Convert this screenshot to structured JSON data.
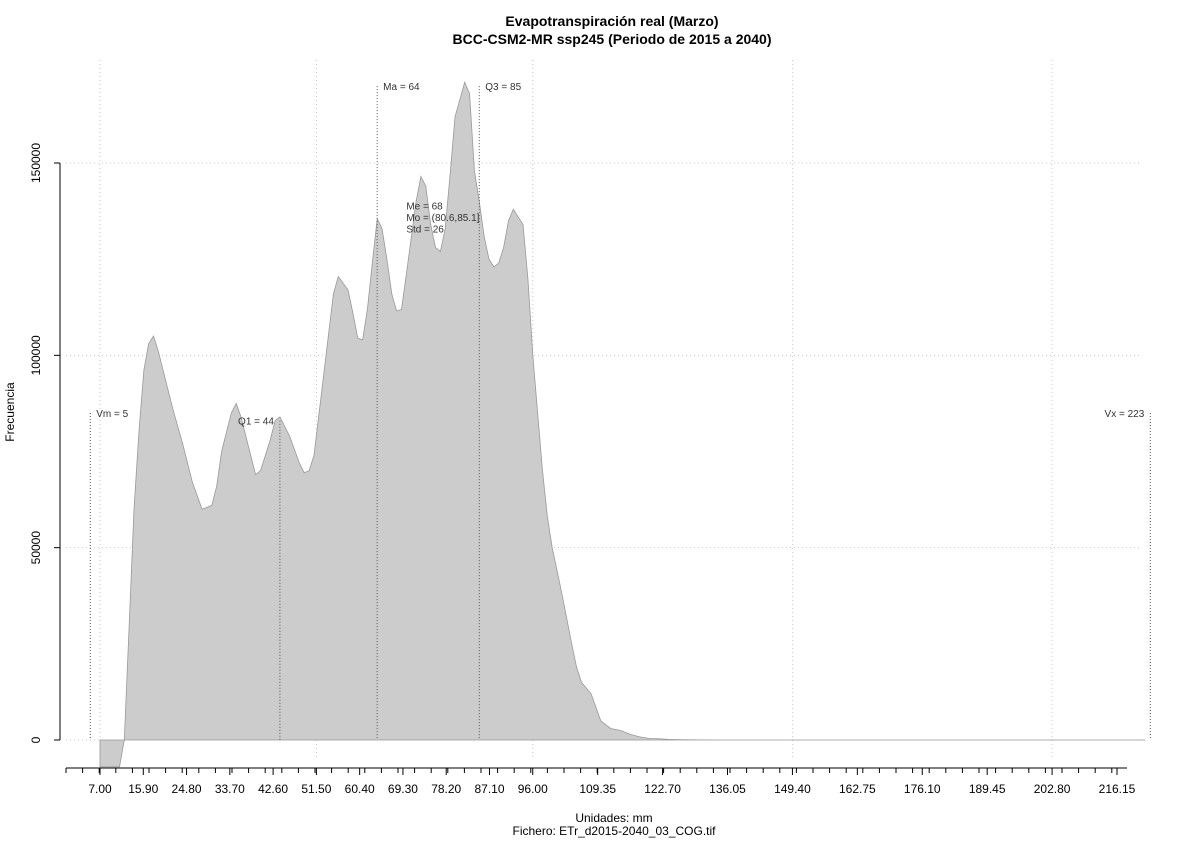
{
  "chart_data": {
    "type": "area",
    "title": "Evapotranspiración real (Marzo)",
    "subtitle": "BCC-CSM2-MR ssp245 (Periodo de 2015 a 2040)",
    "xlabel": "Unidades: mm",
    "ylabel": "Frecuencia",
    "footer": "Fichero: ETr_d2015-2040_03_COG.tif",
    "xlim": [
      2,
      225
    ],
    "ylim": [
      -7000,
      175000
    ],
    "x_ticks": [
      7.0,
      15.9,
      24.8,
      33.7,
      42.6,
      51.5,
      60.4,
      69.3,
      78.2,
      87.1,
      96.0,
      109.35,
      122.7,
      136.05,
      149.4,
      162.75,
      176.1,
      189.45,
      202.8,
      216.15
    ],
    "x_tick_labels": [
      "7.00",
      "15.90",
      "24.80",
      "33.70",
      "42.60",
      "51.50",
      "60.40",
      "69.30",
      "78.20",
      "87.10",
      "96.00",
      "109.35",
      "122.70",
      "136.05",
      "149.40",
      "162.75",
      "176.10",
      "189.45",
      "202.80",
      "216.15"
    ],
    "y_ticks": [
      0,
      50000,
      100000,
      150000
    ],
    "y_tick_labels": [
      "0",
      "50000",
      "100000",
      "150000"
    ],
    "grid": true,
    "fill_color": "#cccccc",
    "line_color": "#999999",
    "density": {
      "x": [
        7,
        9,
        11,
        12,
        13,
        14,
        15,
        16,
        17,
        18,
        19,
        20,
        22,
        24,
        26,
        28,
        30,
        31,
        32,
        34,
        35,
        36,
        38,
        39,
        40,
        42,
        43,
        44,
        46,
        48,
        49,
        50,
        51,
        53,
        55,
        56,
        58,
        59,
        60,
        61,
        62,
        63,
        64,
        65,
        66,
        67,
        68,
        69,
        70,
        72,
        73,
        74,
        75,
        76,
        77,
        78,
        79,
        80,
        82,
        83,
        84,
        85,
        86,
        87,
        88,
        89,
        90,
        91,
        92,
        94,
        95,
        96,
        98,
        99,
        100,
        101,
        102,
        104,
        105,
        106,
        108,
        110,
        112,
        114,
        116,
        118,
        120,
        122,
        124,
        126,
        128,
        130,
        135,
        140,
        150,
        160,
        180,
        200,
        222
      ],
      "y": [
        -7000,
        -7000,
        -7000,
        0,
        30000,
        60000,
        80000,
        96000,
        103000,
        105000,
        101000,
        96000,
        86000,
        77000,
        67000,
        60000,
        61000,
        66000,
        75000,
        85000,
        87500,
        84000,
        74000,
        69000,
        70000,
        78000,
        83000,
        84000,
        79000,
        72000,
        69500,
        70000,
        74000,
        95000,
        116000,
        120500,
        117000,
        111000,
        104500,
        104000,
        112000,
        124000,
        135500,
        133000,
        125000,
        116000,
        111500,
        112000,
        121000,
        140000,
        146500,
        144000,
        134000,
        128000,
        127000,
        133000,
        147000,
        162000,
        171000,
        168000,
        148000,
        140000,
        131000,
        125000,
        123000,
        124000,
        128000,
        135000,
        138000,
        134000,
        120000,
        100000,
        70000,
        58000,
        50000,
        44000,
        38000,
        25000,
        19000,
        15000,
        12000,
        5000,
        3000,
        2500,
        1500,
        800,
        400,
        300,
        150,
        100,
        50,
        30,
        10,
        0,
        0,
        0,
        0,
        0,
        0
      ]
    },
    "annotations": [
      {
        "x": 5,
        "label": "Vm = 5",
        "line_top": 85000,
        "label_y": 85000,
        "side": "right"
      },
      {
        "x": 44,
        "label": "Q1 = 44",
        "line_top": 83000,
        "label_y": 83000,
        "side": "left"
      },
      {
        "x": 64,
        "label": "Ma = 64",
        "line_top": 170000,
        "label_y": 170000,
        "side": "right"
      },
      {
        "x": 85,
        "label": "Q3 = 85",
        "line_top": 170000,
        "label_y": 170000,
        "side": "right"
      },
      {
        "x": 223,
        "label": "Vx = 223",
        "line_top": 85000,
        "label_y": 85000,
        "side": "left"
      }
    ],
    "stats": [
      "Me = 68",
      "Mo = (80.6,85.1]",
      "Std = 26"
    ],
    "stats_x": 70,
    "stats_y": 139000
  }
}
